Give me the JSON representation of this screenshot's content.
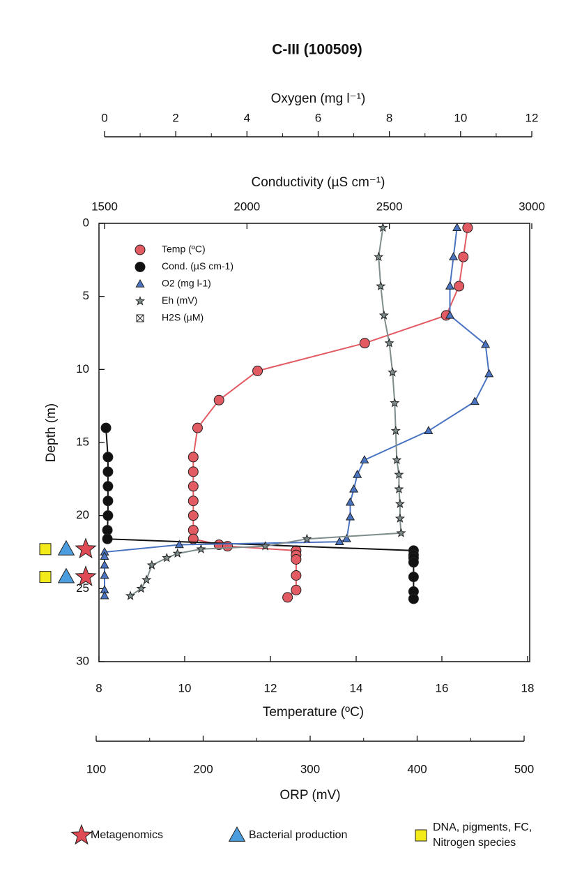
{
  "chart_data": {
    "type": "line",
    "title": "C-III (100509)",
    "ylabel": "Depth (m)",
    "ylim": [
      0,
      30
    ],
    "yticks": [
      0,
      5,
      10,
      15,
      20,
      25,
      30
    ],
    "y_inverted": true,
    "x_axes": [
      {
        "id": "oxygen",
        "label": "Oxygen (mg l⁻¹)",
        "xlim": [
          0,
          12
        ],
        "xticks": [
          0,
          2,
          4,
          6,
          8,
          10,
          12
        ],
        "minor_xticks": [
          1,
          3,
          5,
          7,
          9,
          11
        ]
      },
      {
        "id": "conductivity",
        "label": "Conductivity (µS cm⁻¹)",
        "xlim": [
          1500,
          3000
        ],
        "xticks": [
          1500,
          2000,
          2500,
          3000
        ],
        "minor_xticks": []
      },
      {
        "id": "temperature",
        "label": "Temperature (ºC)",
        "xlim": [
          8,
          18
        ],
        "xticks": [
          8,
          10,
          12,
          14,
          16,
          18
        ],
        "minor_xticks": []
      },
      {
        "id": "orp",
        "label": "ORP (mV)",
        "xlim": [
          100,
          500
        ],
        "xticks": [
          100,
          200,
          300,
          400,
          500
        ],
        "minor_xticks": [
          150,
          250,
          350,
          450
        ]
      }
    ],
    "series": [
      {
        "name": "Temp (ºC)",
        "marker": "circle",
        "color": "#e25a62",
        "x_axis": "temperature",
        "x": [
          16.6,
          16.5,
          16.4,
          16.1,
          14.2,
          11.7,
          10.8,
          10.3,
          10.2,
          10.2,
          10.2,
          10.2,
          10.2,
          10.2,
          10.2,
          10.8,
          11.0,
          12.6,
          12.6,
          12.6,
          12.6,
          12.6,
          12.4
        ],
        "y": [
          0.3,
          2.3,
          4.3,
          6.3,
          8.2,
          10.1,
          12.1,
          14.0,
          16.0,
          17.0,
          18.0,
          19.0,
          20.0,
          21.0,
          21.6,
          22.0,
          22.1,
          22.4,
          22.7,
          23.0,
          24.1,
          25.1,
          25.6
        ]
      },
      {
        "name": "Cond. (µS cm-1)",
        "marker": "circle",
        "color": "#111111",
        "x_axis": "conductivity",
        "x": [
          1505,
          1512,
          1512,
          1512,
          1512,
          1512,
          1510,
          1510,
          2585,
          2585,
          2585,
          2585,
          2585,
          2585,
          2585
        ],
        "y": [
          14.0,
          16.0,
          17.0,
          18.0,
          19.0,
          20.0,
          21.0,
          21.6,
          22.4,
          22.7,
          22.9,
          23.2,
          24.2,
          25.2,
          25.7
        ]
      },
      {
        "name": "O2 (mg l-1)",
        "marker": "triangle",
        "color": "#4a74c2",
        "x_axis": "oxygen",
        "x": [
          9.9,
          9.8,
          9.7,
          9.7,
          10.7,
          10.8,
          10.4,
          9.1,
          7.3,
          7.1,
          7.0,
          6.9,
          6.9,
          6.8,
          6.6,
          2.1,
          0.0,
          0.0,
          0.0,
          0.0,
          0.0,
          0.0
        ],
        "y": [
          0.3,
          2.3,
          4.3,
          6.3,
          8.3,
          10.3,
          12.2,
          14.2,
          16.2,
          17.2,
          18.2,
          19.1,
          20.1,
          21.6,
          21.8,
          22.0,
          22.5,
          22.8,
          23.4,
          24.1,
          25.1,
          25.5
        ]
      },
      {
        "name": "Eh (mV)",
        "marker": "star",
        "color": "#7f8c8c",
        "x_axis": "orp",
        "x": [
          368,
          364,
          366,
          369,
          374,
          377,
          379,
          380,
          381,
          383,
          383,
          384,
          384,
          385,
          297,
          258,
          198,
          176,
          166,
          152,
          147,
          142,
          132
        ],
        "y": [
          0.3,
          2.3,
          4.3,
          6.3,
          8.2,
          10.2,
          12.3,
          14.2,
          16.2,
          17.2,
          18.2,
          19.2,
          20.2,
          21.2,
          21.6,
          22.1,
          22.3,
          22.6,
          22.9,
          23.4,
          24.4,
          25.0,
          25.5
        ]
      },
      {
        "name": "H2S (µM)",
        "marker": "hourglass",
        "color": "#111111",
        "x_axis": "conductivity",
        "x": [],
        "y": []
      }
    ],
    "sample_depths": [
      22.3,
      24.2
    ],
    "key": [
      {
        "lines": [
          "Metagenomics"
        ],
        "symbol": "star",
        "color": "#e04a55"
      },
      {
        "lines": [
          "Bacterial production"
        ],
        "symbol": "triangle",
        "color": "#4a9ee0"
      },
      {
        "lines": [
          "DNA, pigments, FC,",
          "Nitrogen species"
        ],
        "symbol": "square",
        "color": "#f2ea1a"
      }
    ]
  }
}
